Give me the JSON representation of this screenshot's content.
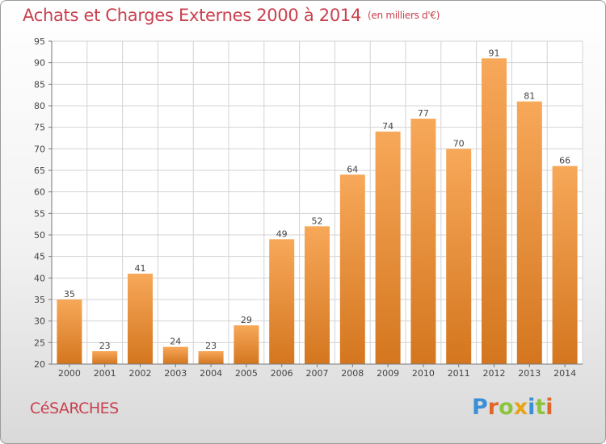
{
  "header": {
    "title": "Achats et Charges Externes 2000 à 2014",
    "unit": "(en milliers d'€)"
  },
  "place": "CéSARCHES",
  "logo": {
    "text": "Proxiti",
    "letters": [
      {
        "ch": "P",
        "color": "#3a8fd6"
      },
      {
        "ch": "r",
        "color": "#e0672a"
      },
      {
        "ch": "o",
        "color": "#8bc53f"
      },
      {
        "ch": "x",
        "color": "#e8a317"
      },
      {
        "ch": "i",
        "color": "#3a8fd6"
      },
      {
        "ch": "t",
        "color": "#8bc53f"
      },
      {
        "ch": "i",
        "color": "#e0672a"
      }
    ]
  },
  "colors": {
    "bar_light": "#f7a859",
    "bar_dark": "#d4761f",
    "title": "#c8414f",
    "grid": "#d3d3d3"
  },
  "chart_data": {
    "type": "bar",
    "categories": [
      "2000",
      "2001",
      "2002",
      "2003",
      "2004",
      "2005",
      "2006",
      "2007",
      "2008",
      "2009",
      "2010",
      "2011",
      "2012",
      "2013",
      "2014"
    ],
    "values": [
      35,
      23,
      41,
      24,
      23,
      29,
      49,
      52,
      64,
      74,
      77,
      70,
      91,
      81,
      66
    ],
    "ylim": [
      20,
      95
    ],
    "yticks": [
      20,
      25,
      30,
      35,
      40,
      45,
      50,
      55,
      60,
      65,
      70,
      75,
      80,
      85,
      90,
      95
    ],
    "grid": true,
    "data_labels": true
  }
}
